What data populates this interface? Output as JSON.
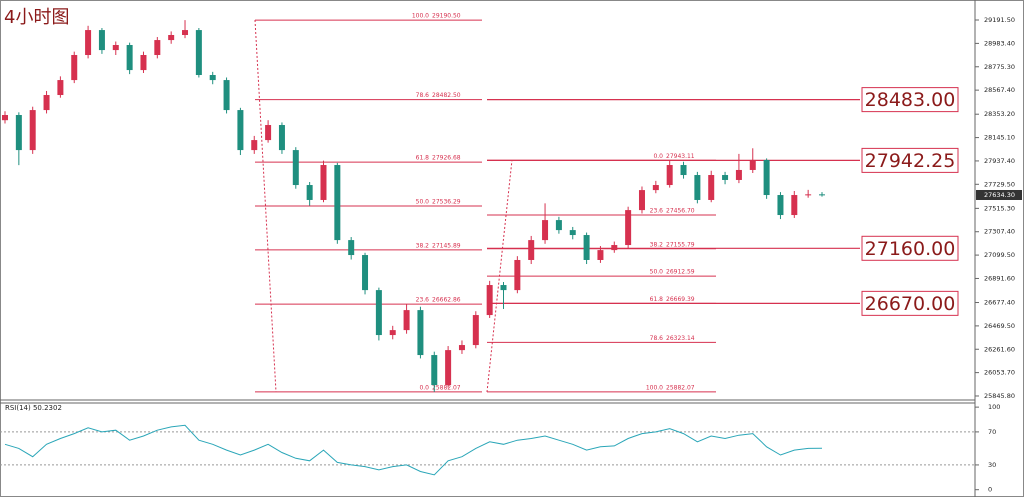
{
  "chart_data": {
    "type": "candlestick",
    "title": "4小时图",
    "up_color": "#d6314f",
    "down_color": "#1f8f7f",
    "ylim": [
      25810,
      29325
    ],
    "yticks": [
      {
        "value": 29191.5,
        "label": "29191.50"
      },
      {
        "value": 28983.4,
        "label": "28983.40"
      },
      {
        "value": 28775.3,
        "label": "28775.30"
      },
      {
        "value": 28567.4,
        "label": "28567.40"
      },
      {
        "value": 28353.2,
        "label": "28353.20"
      },
      {
        "value": 28145.1,
        "label": "28145.10"
      },
      {
        "value": 27937.4,
        "label": "27937.40"
      },
      {
        "value": 27729.5,
        "label": "27729.50"
      },
      {
        "value": 27515.3,
        "label": "27515.30"
      },
      {
        "value": 27307.4,
        "label": "27307.40"
      },
      {
        "value": 27099.5,
        "label": "27099.50"
      },
      {
        "value": 26891.6,
        "label": "26891.60"
      },
      {
        "value": 26677.4,
        "label": "26677.40"
      },
      {
        "value": 26469.5,
        "label": "26469.50"
      },
      {
        "value": 26261.6,
        "label": "26261.60"
      },
      {
        "value": 26053.7,
        "label": "26053.70"
      },
      {
        "value": 25845.8,
        "label": "25845.80"
      }
    ],
    "candles": [
      [
        28300,
        28380,
        28270,
        28346
      ],
      [
        28346,
        28370,
        27900,
        28034
      ],
      [
        28034,
        28420,
        28000,
        28390
      ],
      [
        28390,
        28560,
        28360,
        28524
      ],
      [
        28524,
        28690,
        28500,
        28657
      ],
      [
        28657,
        28910,
        28630,
        28880
      ],
      [
        28880,
        29140,
        28850,
        29102
      ],
      [
        29102,
        29120,
        28890,
        28924
      ],
      [
        28924,
        29000,
        28880,
        28969
      ],
      [
        28969,
        28990,
        28710,
        28746
      ],
      [
        28746,
        28910,
        28720,
        28880
      ],
      [
        28880,
        29040,
        28850,
        29013
      ],
      [
        29013,
        29090,
        28980,
        29058
      ],
      [
        29058,
        29190.5,
        29030,
        29102
      ],
      [
        29102,
        29120,
        28680,
        28702
      ],
      [
        28702,
        28730,
        28620,
        28657
      ],
      [
        28657,
        28680,
        28360,
        28390
      ],
      [
        28390,
        28410,
        27990,
        28034
      ],
      [
        28034,
        28160,
        28000,
        28123
      ],
      [
        28123,
        28300,
        28100,
        28257
      ],
      [
        28257,
        28280,
        28000,
        28034
      ],
      [
        28034,
        28060,
        27690,
        27723
      ],
      [
        27723,
        27750,
        27540,
        27590
      ],
      [
        27590,
        27940,
        27570,
        27901
      ],
      [
        27901,
        27920,
        27200,
        27233
      ],
      [
        27233,
        27260,
        27060,
        27100
      ],
      [
        27100,
        27120,
        26750,
        26788
      ],
      [
        26788,
        26810,
        26340,
        26388
      ],
      [
        26388,
        26470,
        26350,
        26432
      ],
      [
        26432,
        26662,
        26400,
        26610
      ],
      [
        26610,
        26640,
        26180,
        26210
      ],
      [
        26210,
        26240,
        25882.07,
        25943
      ],
      [
        25943,
        26290,
        25920,
        26254
      ],
      [
        26254,
        26340,
        26220,
        26299
      ],
      [
        26299,
        26600,
        26270,
        26566
      ],
      [
        26566,
        26870,
        26540,
        26833
      ],
      [
        26833,
        26860,
        26620,
        26788
      ],
      [
        26788,
        27090,
        26760,
        27056
      ],
      [
        27056,
        27270,
        27020,
        27233
      ],
      [
        27233,
        27560,
        27200,
        27411
      ],
      [
        27411,
        27440,
        27290,
        27322
      ],
      [
        27322,
        27350,
        27240,
        27278
      ],
      [
        27278,
        27300,
        27020,
        27056
      ],
      [
        27056,
        27180,
        27030,
        27144
      ],
      [
        27144,
        27220,
        27120,
        27189
      ],
      [
        27189,
        27530,
        27160,
        27500
      ],
      [
        27500,
        27710,
        27470,
        27678
      ],
      [
        27678,
        27760,
        27650,
        27723
      ],
      [
        27723,
        27943.11,
        27700,
        27901
      ],
      [
        27901,
        27930,
        27780,
        27812
      ],
      [
        27812,
        27840,
        27560,
        27590
      ],
      [
        27590,
        27850,
        27570,
        27812
      ],
      [
        27812,
        27840,
        27730,
        27768
      ],
      [
        27768,
        28000,
        27740,
        27857
      ],
      [
        27857,
        28050,
        27830,
        27946
      ],
      [
        27946,
        27960,
        27600,
        27634
      ],
      [
        27634,
        27660,
        27420,
        27456
      ],
      [
        27456,
        27670,
        27430,
        27634
      ],
      [
        27634,
        27680,
        27610,
        27640
      ],
      [
        27640,
        27660,
        27620,
        27634.3
      ]
    ],
    "current_price": {
      "value": 27634.3,
      "label": "27634.30"
    },
    "fib_left": [
      {
        "ratio": {
          "value": 100,
          "label": "100.0"
        },
        "price": {
          "value": 29190.5,
          "label": "29190.50"
        }
      },
      {
        "ratio": 78.6,
        "price": {
          "value": 28482.5,
          "label": "28482.50"
        }
      },
      {
        "ratio": 61.8,
        "price": 27926.68
      },
      {
        "ratio": {
          "value": 50,
          "label": "50.0"
        },
        "price": 27536.29
      },
      {
        "ratio": 38.2,
        "price": 27145.89
      },
      {
        "ratio": 23.6,
        "price": 26662.86
      },
      {
        "ratio": {
          "value": 0,
          "label": "0.0"
        },
        "price": 25882.07
      }
    ],
    "fib_right": [
      {
        "ratio": {
          "value": 0,
          "label": "0.0"
        },
        "price": 27943.11
      },
      {
        "ratio": 23.6,
        "price": {
          "value": 27456.7,
          "label": "27456.70"
        }
      },
      {
        "ratio": 38.2,
        "price": 27155.79
      },
      {
        "ratio": {
          "value": 50,
          "label": "50.0"
        },
        "price": 26912.59
      },
      {
        "ratio": 61.8,
        "price": 26669.39
      },
      {
        "ratio": 78.6,
        "price": 26323.14
      },
      {
        "ratio": {
          "value": 100,
          "label": "100.0"
        },
        "price": 25882.07
      }
    ],
    "key_levels": [
      {
        "value": 28483,
        "label": "28483.00"
      },
      27942.25,
      {
        "value": 27160,
        "label": "27160.00"
      },
      {
        "value": 26670,
        "label": "26670.00"
      }
    ],
    "rsi": {
      "title": "RSI(14) 50.2302",
      "color": "#2aa6b8",
      "ylim": [
        -4,
        105
      ],
      "yticks": [
        100,
        70,
        30,
        0
      ],
      "levels": [
        70,
        30
      ],
      "values": [
        55,
        50,
        40,
        55,
        62,
        68,
        75,
        70,
        72,
        60,
        65,
        72,
        76,
        78,
        60,
        55,
        48,
        42,
        48,
        55,
        45,
        38,
        35,
        48,
        33,
        30,
        28,
        24,
        28,
        30,
        22,
        18,
        35,
        40,
        50,
        58,
        55,
        60,
        62,
        65,
        60,
        55,
        48,
        52,
        53,
        62,
        68,
        70,
        74,
        68,
        58,
        65,
        62,
        66,
        68,
        52,
        42,
        48,
        50,
        50.2302
      ]
    }
  }
}
